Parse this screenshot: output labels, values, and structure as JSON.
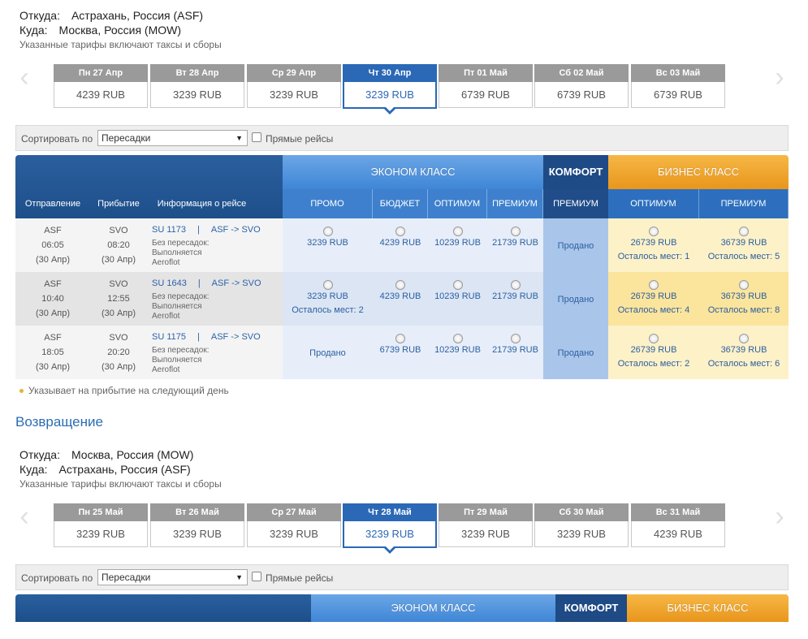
{
  "outbound": {
    "from_label": "Откуда:",
    "from_value": "Астрахань, Россия (ASF)",
    "to_label": "Куда:",
    "to_value": "Москва, Россия (MOW)",
    "note": "Указанные тарифы включают таксы и сборы",
    "dates": [
      {
        "day": "Пн 27 Апр",
        "price": "4239 RUB",
        "active": false
      },
      {
        "day": "Вт 28 Апр",
        "price": "3239 RUB",
        "active": false
      },
      {
        "day": "Ср 29 Апр",
        "price": "3239 RUB",
        "active": false
      },
      {
        "day": "Чт 30 Апр",
        "price": "3239 RUB",
        "active": true
      },
      {
        "day": "Пт 01 Май",
        "price": "6739 RUB",
        "active": false
      },
      {
        "day": "Сб 02 Май",
        "price": "6739 RUB",
        "active": false
      },
      {
        "day": "Вс 03 Май",
        "price": "6739 RUB",
        "active": false
      }
    ],
    "sort_label": "Сортировать по",
    "sort_value": "Пересадки",
    "direct_label": "Прямые рейсы",
    "table": {
      "economy": "ЭКОНОМ КЛАСС",
      "comfort": "КОМФОРТ",
      "business": "БИЗНЕС КЛАСС",
      "col_departure": "Отправление",
      "col_arrival": "Прибытие",
      "col_info": "Информация о рейсе",
      "fare_headers": [
        "ПРОМО",
        "БЮДЖЕТ",
        "ОПТИМУМ",
        "ПРЕМИУМ",
        "ПРЕМИУМ",
        "ОПТИМУМ",
        "ПРЕМИУМ"
      ],
      "flights": [
        {
          "dep_code": "ASF",
          "dep_time": "06:05",
          "dep_date": "(30 Апр)",
          "arr_code": "SVO",
          "arr_time": "08:20",
          "arr_date": "(30 Апр)",
          "flight_no": "SU 1173",
          "route": "ASF -> SVO",
          "stops": "Без пересадок:",
          "operated": "Выполняется",
          "carrier": "Aeroflot",
          "fares": [
            {
              "price": "3239 RUB",
              "seats": ""
            },
            {
              "price": "4239 RUB",
              "seats": ""
            },
            {
              "price": "10239 RUB",
              "seats": ""
            },
            {
              "price": "21739 RUB",
              "seats": ""
            },
            {
              "sold": "Продано"
            },
            {
              "price": "26739 RUB",
              "seats": "Осталось мест: 1"
            },
            {
              "price": "36739 RUB",
              "seats": "Осталось мест: 5"
            }
          ]
        },
        {
          "dep_code": "ASF",
          "dep_time": "10:40",
          "dep_date": "(30 Апр)",
          "arr_code": "SVO",
          "arr_time": "12:55",
          "arr_date": "(30 Апр)",
          "flight_no": "SU 1643",
          "route": "ASF -> SVO",
          "stops": "Без пересадок:",
          "operated": "Выполняется",
          "carrier": "Aeroflot",
          "fares": [
            {
              "price": "3239 RUB",
              "seats": "Осталось мест: 2"
            },
            {
              "price": "4239 RUB",
              "seats": ""
            },
            {
              "price": "10239 RUB",
              "seats": ""
            },
            {
              "price": "21739 RUB",
              "seats": ""
            },
            {
              "sold": "Продано"
            },
            {
              "price": "26739 RUB",
              "seats": "Осталось мест: 4"
            },
            {
              "price": "36739 RUB",
              "seats": "Осталось мест: 8"
            }
          ]
        },
        {
          "dep_code": "ASF",
          "dep_time": "18:05",
          "dep_date": "(30 Апр)",
          "arr_code": "SVO",
          "arr_time": "20:20",
          "arr_date": "(30 Апр)",
          "flight_no": "SU 1175",
          "route": "ASF -> SVO",
          "stops": "Без пересадок:",
          "operated": "Выполняется",
          "carrier": "Aeroflot",
          "fares": [
            {
              "sold": "Продано"
            },
            {
              "price": "6739 RUB",
              "seats": ""
            },
            {
              "price": "10239 RUB",
              "seats": ""
            },
            {
              "price": "21739 RUB",
              "seats": ""
            },
            {
              "sold": "Продано"
            },
            {
              "price": "26739 RUB",
              "seats": "Осталось мест: 2"
            },
            {
              "price": "36739 RUB",
              "seats": "Осталось мест: 6"
            }
          ]
        }
      ]
    },
    "legend": "Указывает на прибытие на следующий день"
  },
  "return_title": "Возвращение",
  "inbound": {
    "from_label": "Откуда:",
    "from_value": "Москва, Россия (MOW)",
    "to_label": "Куда:",
    "to_value": "Астрахань, Россия (ASF)",
    "note": "Указанные тарифы включают таксы и сборы",
    "dates": [
      {
        "day": "Пн 25 Май",
        "price": "3239 RUB",
        "active": false
      },
      {
        "day": "Вт 26 Май",
        "price": "3239 RUB",
        "active": false
      },
      {
        "day": "Ср 27 Май",
        "price": "3239 RUB",
        "active": false
      },
      {
        "day": "Чт 28 Май",
        "price": "3239 RUB",
        "active": true
      },
      {
        "day": "Пт 29 Май",
        "price": "3239 RUB",
        "active": false
      },
      {
        "day": "Сб 30 Май",
        "price": "3239 RUB",
        "active": false
      },
      {
        "day": "Вс 31 Май",
        "price": "4239 RUB",
        "active": false
      }
    ],
    "sort_label": "Сортировать по",
    "sort_value": "Пересадки",
    "direct_label": "Прямые рейсы",
    "economy": "ЭКОНОМ КЛАСС",
    "comfort": "КОМФОРТ",
    "business": "БИЗНЕС КЛАСС"
  },
  "colors": {
    "accent": "#2b68b6",
    "economy": "#4a8fdc",
    "comfort": "#1e4a85",
    "business": "#eda22a"
  }
}
